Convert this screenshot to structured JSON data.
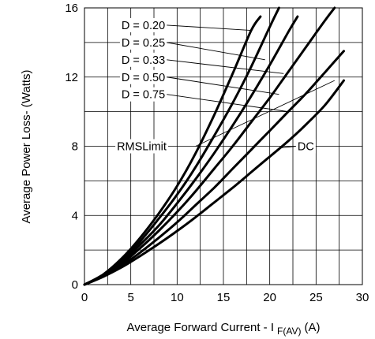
{
  "chart_data": {
    "type": "line",
    "title": "",
    "xlabel": "Average Forward Current - I",
    "xlabel_subscript": "F(AV)",
    "xlabel_unit": "(A)",
    "ylabel": "Average Power Loss- (Watts)",
    "xlim": [
      0,
      30
    ],
    "ylim": [
      0,
      16
    ],
    "xticks": [
      0,
      5,
      10,
      15,
      20,
      25,
      30
    ],
    "yticks": [
      0,
      4,
      8,
      12,
      16
    ],
    "grid": true,
    "series": [
      {
        "name": "D = 0.20",
        "x": [
          0,
          2,
          4,
          6,
          8,
          10,
          12,
          14,
          16,
          18,
          19
        ],
        "y": [
          0,
          0.58,
          1.5,
          2.7,
          4.1,
          5.7,
          7.6,
          9.8,
          12.2,
          14.7,
          15.5
        ]
      },
      {
        "name": "D = 0.25",
        "x": [
          0,
          2,
          4,
          6,
          8,
          10,
          12,
          14,
          16,
          18,
          20,
          21
        ],
        "y": [
          0,
          0.55,
          1.4,
          2.5,
          3.8,
          5.2,
          6.8,
          8.6,
          10.5,
          12.6,
          14.9,
          16
        ]
      },
      {
        "name": "D = 0.33",
        "x": [
          0,
          2,
          4,
          6,
          8,
          10,
          12,
          14,
          16,
          18,
          20,
          22,
          23
        ],
        "y": [
          0,
          0.52,
          1.3,
          2.3,
          3.4,
          4.7,
          6.1,
          7.6,
          9.2,
          10.9,
          12.7,
          14.6,
          15.5
        ]
      },
      {
        "name": "D = 0.50",
        "x": [
          0,
          2,
          4,
          6,
          8,
          10,
          12,
          14,
          16,
          18,
          20,
          22,
          24,
          26,
          27
        ],
        "y": [
          0,
          0.5,
          1.2,
          2.1,
          3.1,
          4.2,
          5.4,
          6.7,
          8.0,
          9.4,
          10.8,
          12.3,
          13.8,
          15.3,
          16
        ]
      },
      {
        "name": "D = 0.75",
        "x": [
          0,
          2,
          4,
          6,
          8,
          10,
          12,
          14,
          16,
          18,
          20,
          22,
          24,
          26,
          28
        ],
        "y": [
          0,
          0.47,
          1.1,
          1.85,
          2.7,
          3.6,
          4.6,
          5.6,
          6.7,
          7.8,
          8.9,
          10.0,
          11.1,
          12.3,
          13.5
        ]
      },
      {
        "name": "DC",
        "x": [
          0,
          2,
          4,
          6,
          8,
          10,
          12,
          14,
          16,
          18,
          20,
          22,
          24,
          26,
          28
        ],
        "y": [
          0,
          0.45,
          1.0,
          1.65,
          2.35,
          3.1,
          3.9,
          4.75,
          5.6,
          6.5,
          7.4,
          8.3,
          9.3,
          10.4,
          11.8
        ]
      },
      {
        "name": "RMSLimit",
        "x": [
          12,
          27
        ],
        "y": [
          8,
          11.8
        ]
      }
    ],
    "annotations": [
      {
        "text": "D = 0.20",
        "series": "D = 0.20",
        "label_at": [
          4,
          15
        ],
        "point_at": [
          18,
          14.7
        ]
      },
      {
        "text": "D = 0.25",
        "series": "D = 0.25",
        "label_at": [
          4,
          14
        ],
        "point_at": [
          19.5,
          13.0
        ]
      },
      {
        "text": "D = 0.33",
        "series": "D = 0.33",
        "label_at": [
          4,
          13
        ],
        "point_at": [
          21.5,
          12.2
        ]
      },
      {
        "text": "D = 0.50",
        "series": "D = 0.50",
        "label_at": [
          4,
          12
        ],
        "point_at": [
          21,
          11.0
        ]
      },
      {
        "text": "D = 0.75",
        "series": "D = 0.75",
        "label_at": [
          4,
          11
        ],
        "point_at": [
          22,
          10.0
        ]
      },
      {
        "text": "RMSLimit",
        "series": "RMSLimit",
        "label_at": [
          3.5,
          8
        ],
        "point_at": [
          12,
          8
        ]
      },
      {
        "text": "DC",
        "series": "DC",
        "label_at": [
          23,
          8
        ],
        "point_at": [
          21,
          7.9
        ]
      }
    ]
  }
}
